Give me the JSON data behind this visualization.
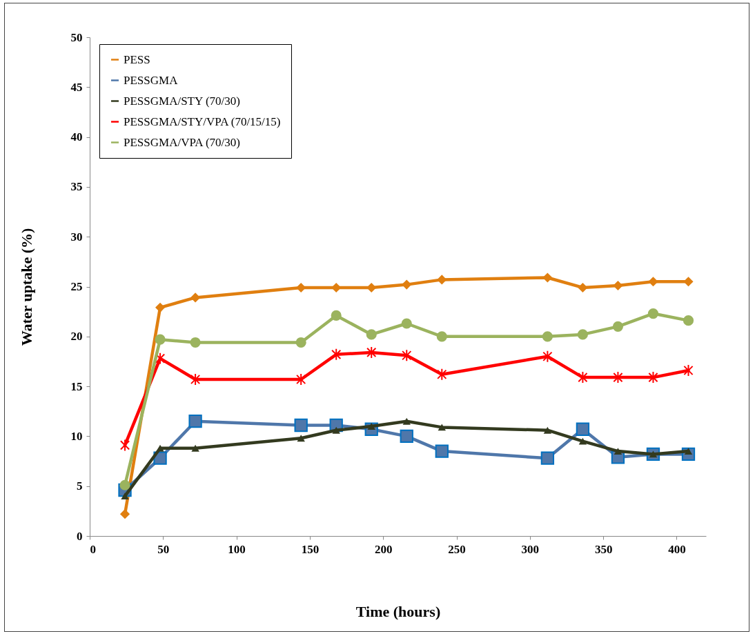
{
  "chart_data": {
    "type": "line",
    "xlabel": "Time (hours)",
    "ylabel": "Water uptake (%)",
    "x": [
      24,
      48,
      72,
      144,
      168,
      192,
      216,
      240,
      312,
      336,
      360,
      384,
      408
    ],
    "xlim": [
      0,
      420
    ],
    "xticks": [
      0,
      50,
      100,
      150,
      200,
      250,
      300,
      350,
      400
    ],
    "ylim": [
      0,
      50
    ],
    "yticks": [
      0,
      5,
      10,
      15,
      20,
      25,
      30,
      35,
      40,
      45,
      50
    ],
    "grid": false,
    "legend": "top left",
    "line_style": "solid",
    "series": [
      {
        "name": "PESS",
        "color": "#e07f10",
        "marker": "diamond",
        "values": [
          2.2,
          22.9,
          23.9,
          24.9,
          24.9,
          24.9,
          25.2,
          25.7,
          25.9,
          24.9,
          25.1,
          25.5,
          25.5
        ]
      },
      {
        "name": "PESSGMA",
        "color": "#4f77aa",
        "marker": "square",
        "values": [
          4.6,
          7.8,
          11.5,
          11.1,
          11.1,
          10.7,
          10.0,
          8.5,
          7.8,
          10.7,
          7.9,
          8.2,
          8.2
        ]
      },
      {
        "name": "PESSGMA/STY (70/30)",
        "color": "#333a1f",
        "marker": "triangle",
        "values": [
          4.0,
          8.8,
          8.8,
          9.8,
          10.6,
          11.0,
          11.5,
          10.9,
          10.6,
          9.5,
          8.5,
          8.2,
          8.5
        ]
      },
      {
        "name": "PESSGMA/STY/VPA (70/15/15)",
        "color": "#ff0000",
        "marker": "cross",
        "values": [
          9.1,
          17.8,
          15.7,
          15.7,
          18.2,
          18.4,
          18.1,
          16.2,
          18.0,
          15.9,
          15.9,
          15.9,
          16.6
        ]
      },
      {
        "name": "PESSGMA/VPA (70/30)",
        "color": "#9bb35e",
        "marker": "circle",
        "values": [
          5.1,
          19.7,
          19.4,
          19.4,
          22.1,
          20.2,
          21.3,
          20.0,
          20.0,
          20.2,
          21.0,
          22.3,
          21.6
        ]
      }
    ]
  }
}
